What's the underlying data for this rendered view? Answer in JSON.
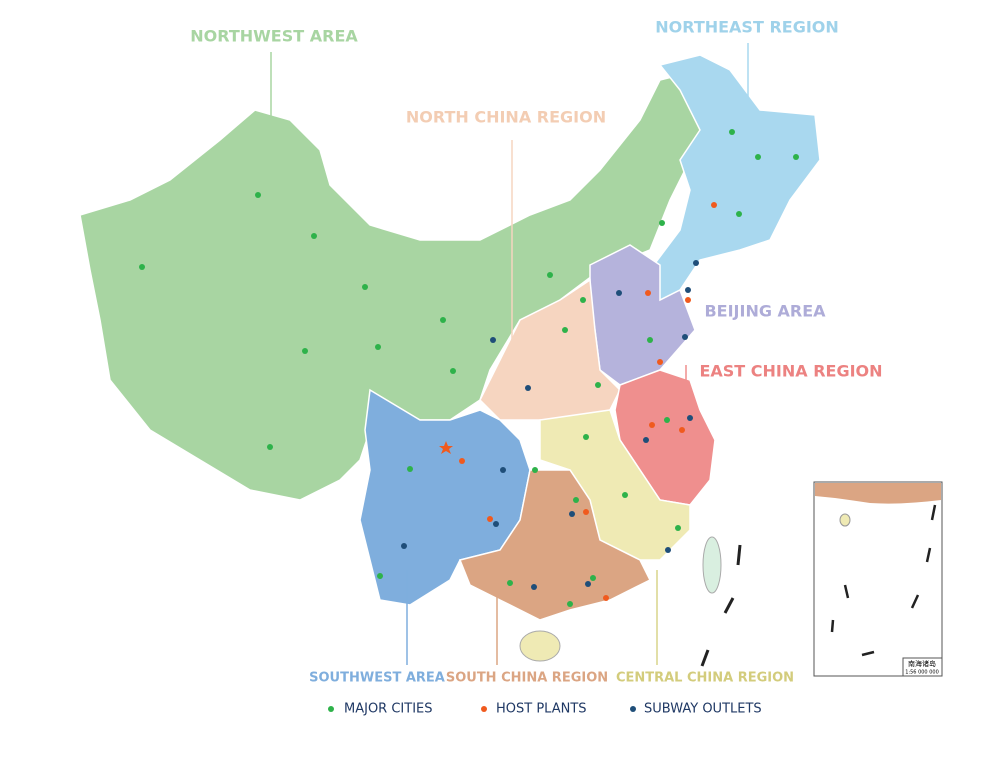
{
  "regions": [
    {
      "label": "NORTHWEST AREA"
    },
    {
      "label": "NORTHEAST REGION"
    },
    {
      "label": "NORTH CHINA REGION"
    },
    {
      "label": "BEIJING AREA"
    },
    {
      "label": "EAST CHINA REGION"
    },
    {
      "label": "SOUTHWEST AREA"
    },
    {
      "label": "SOUTH CHINA REGION"
    },
    {
      "label": "CENTRAL CHINA REGION"
    }
  ],
  "legend": [
    {
      "label": "MAJOR CITIES"
    },
    {
      "label": "HOST PLANTS"
    },
    {
      "label": "SUBWAY OUTLETS"
    }
  ],
  "inset": {
    "title": "南海诸岛",
    "scale": "1:56 000 000"
  }
}
